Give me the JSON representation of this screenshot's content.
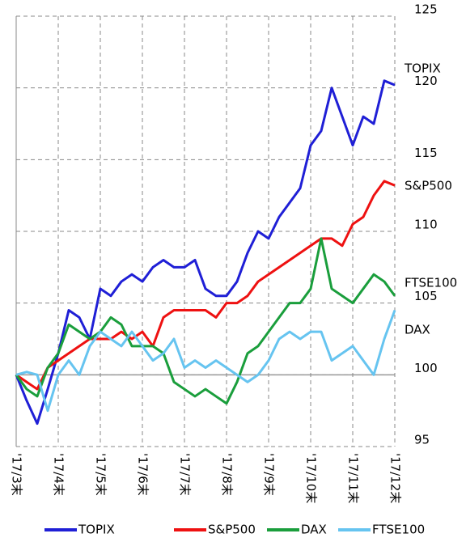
{
  "chart_data": {
    "type": "line",
    "x": [
      0,
      0.25,
      0.5,
      0.75,
      1,
      1.25,
      1.5,
      1.75,
      2,
      2.25,
      2.5,
      2.75,
      3,
      3.25,
      3.5,
      3.75,
      4,
      4.25,
      4.5,
      4.75,
      5,
      5.25,
      5.5,
      5.75,
      6,
      6.25,
      6.5,
      6.75,
      7,
      7.25,
      7.5,
      7.75,
      8,
      8.25,
      8.5,
      8.75,
      9
    ],
    "series": [
      {
        "name": "TOPIX",
        "color": "#1f1fd6",
        "values": [
          100,
          98.2,
          96.6,
          99,
          101.5,
          104.5,
          104,
          102.5,
          106,
          105.5,
          106.5,
          107,
          106.5,
          107.5,
          108,
          107.5,
          107.5,
          108,
          106,
          105.5,
          105.5,
          106.5,
          108.5,
          110,
          109.5,
          111,
          112,
          113,
          116,
          117,
          120,
          118,
          116,
          118,
          117.5,
          120.5,
          120.2
        ]
      },
      {
        "name": "S&P500",
        "color": "#ee1111",
        "values": [
          100,
          99.5,
          99,
          100.5,
          101,
          101.5,
          102,
          102.5,
          102.5,
          102.5,
          103,
          102.5,
          103,
          102,
          104,
          104.5,
          104.5,
          104.5,
          104.5,
          104,
          105,
          105,
          105.5,
          106.5,
          107,
          107.5,
          108,
          108.5,
          109,
          109.5,
          109.5,
          109,
          110.5,
          111,
          112.5,
          113.5,
          113.2
        ]
      },
      {
        "name": "DAX",
        "color": "#1a9e3c",
        "values": [
          100,
          99,
          98.5,
          100.5,
          101.5,
          103.5,
          103,
          102.5,
          103,
          104,
          103.5,
          102,
          102,
          102,
          101.5,
          99.5,
          99,
          98.5,
          99,
          98.5,
          98,
          99.5,
          101.5,
          102,
          103,
          104,
          105,
          105,
          106,
          109.5,
          106,
          105.5,
          105,
          106,
          107,
          106.5,
          105.5
        ]
      },
      {
        "name": "FTSE100",
        "color": "#66c4f0",
        "values": [
          100,
          100.2,
          100,
          97.5,
          100,
          101,
          100,
          102,
          103,
          102.5,
          102,
          103,
          102,
          101,
          101.5,
          102.5,
          100.5,
          101,
          100.5,
          101,
          100.5,
          100,
          99.5,
          100,
          101,
          102.5,
          103,
          102.5,
          103,
          103,
          101,
          101.5,
          102,
          101,
          100,
          102.5,
          104.5
        ]
      }
    ],
    "xlim": [
      0,
      9
    ],
    "xticks": [
      {
        "value": 0,
        "label": "'17/3末"
      },
      {
        "value": 1,
        "label": "'17/4末"
      },
      {
        "value": 2,
        "label": "'17/5末"
      },
      {
        "value": 3,
        "label": "'17/6末"
      },
      {
        "value": 4,
        "label": "'17/7末"
      },
      {
        "value": 5,
        "label": "'17/8末"
      },
      {
        "value": 6,
        "label": "'17/9末"
      },
      {
        "value": 7,
        "label": "'17/10末"
      },
      {
        "value": 8,
        "label": "'17/11末"
      },
      {
        "value": 9,
        "label": "'17/12末"
      }
    ],
    "ylim": [
      95,
      125
    ],
    "yticks": [
      95,
      100,
      105,
      110,
      115,
      120,
      125
    ],
    "reference_line": 100,
    "grid": true,
    "legend": "bottom"
  }
}
